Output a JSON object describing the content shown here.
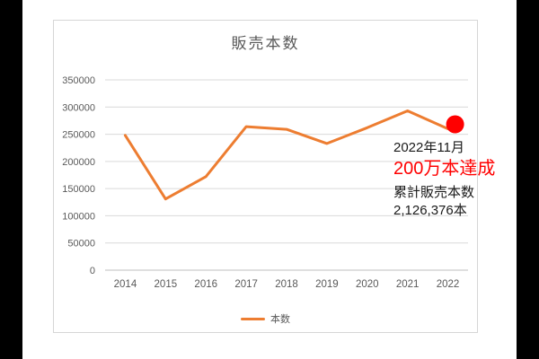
{
  "window": {
    "background": "#ffffff",
    "side_bar_color": "#000000"
  },
  "chart_data": {
    "type": "line",
    "title": "販売本数",
    "categories": [
      "2014",
      "2015",
      "2016",
      "2017",
      "2018",
      "2019",
      "2020",
      "2021",
      "2022"
    ],
    "series": [
      {
        "name": "本数",
        "color": "#ED7D31",
        "values": [
          248000,
          131000,
          172000,
          264000,
          259000,
          233000,
          262000,
          293000,
          260000
        ]
      }
    ],
    "xlabel": "",
    "ylabel": "",
    "ylim": [
      0,
      350000
    ],
    "yticks": [
      0,
      50000,
      100000,
      150000,
      200000,
      250000,
      300000,
      350000
    ],
    "grid": "horizontal",
    "legend_position": "bottom",
    "title_color": "#595959",
    "axis_label_color": "#595959",
    "gridline_color": "#D9D9D9",
    "axis_line_color": "#BFBFBF"
  },
  "annotation": {
    "marker_color": "#FF0000",
    "line1": "2022年11月",
    "line2": "200万本達成",
    "line2_color": "#FF0000",
    "line3": "累計販売本数",
    "line4": "2,126,376本",
    "text_color": "#1A1A1A"
  }
}
